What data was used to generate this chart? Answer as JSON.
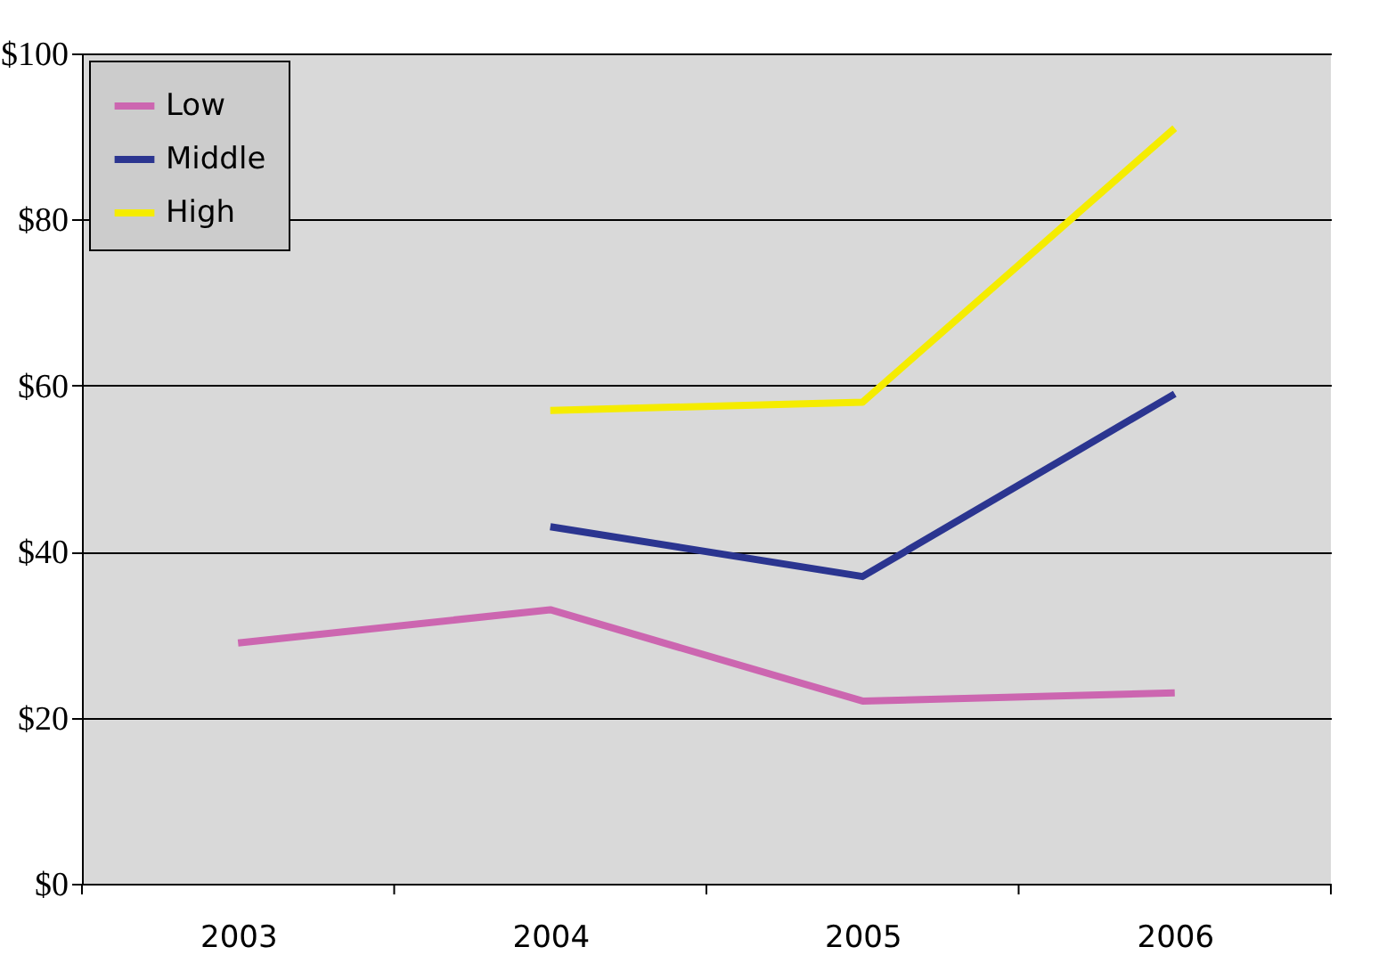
{
  "chart_data": {
    "type": "line",
    "categories": [
      "2003",
      "2004",
      "2005",
      "2006"
    ],
    "series": [
      {
        "name": "Low",
        "color": "#cc66b0",
        "values": [
          29,
          33,
          22,
          23
        ]
      },
      {
        "name": "Middle",
        "color": "#2b3590",
        "values": [
          null,
          43,
          37,
          59
        ]
      },
      {
        "name": "High",
        "color": "#f5ec00",
        "values": [
          null,
          57,
          58,
          91
        ]
      }
    ],
    "ylim": [
      0,
      100
    ],
    "yticks": [
      {
        "value": 0,
        "label": "$0"
      },
      {
        "value": 20,
        "label": "$20"
      },
      {
        "value": 40,
        "label": "$40"
      },
      {
        "value": 60,
        "label": "$60"
      },
      {
        "value": 80,
        "label": "$80"
      },
      {
        "value": 100,
        "label": "$100"
      }
    ],
    "grid": "y",
    "legend": "top left",
    "marker": "none",
    "line_style": "solid"
  }
}
